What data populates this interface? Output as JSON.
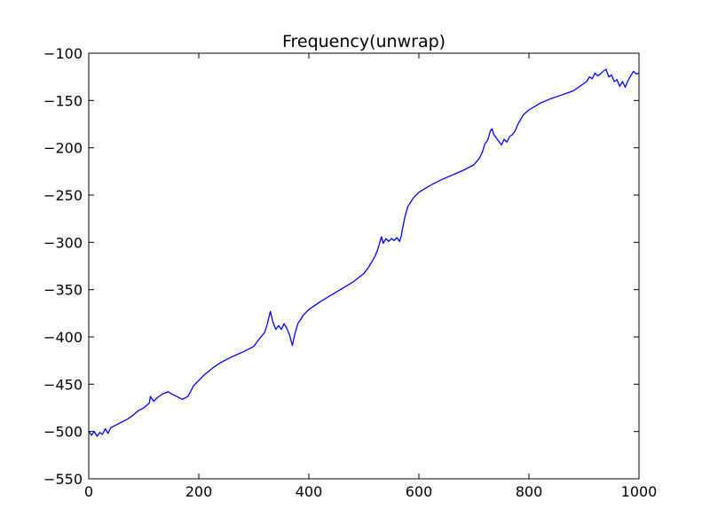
{
  "chart_data": {
    "type": "line",
    "title": "Frequency(unwrap)",
    "xlabel": "",
    "ylabel": "",
    "xlim": [
      0,
      1000
    ],
    "ylim": [
      -550,
      -100
    ],
    "x_ticks": [
      0,
      200,
      400,
      600,
      800,
      1000
    ],
    "y_ticks": [
      -100,
      -150,
      -200,
      -250,
      -300,
      -350,
      -400,
      -450,
      -500,
      -550
    ],
    "grid": false,
    "legend": "none",
    "series": [
      {
        "color": "#0000ff",
        "x": [
          0,
          5,
          10,
          15,
          20,
          25,
          30,
          35,
          40,
          50,
          60,
          70,
          80,
          90,
          100,
          110,
          112,
          118,
          125,
          135,
          145,
          150,
          160,
          170,
          180,
          185,
          190,
          200,
          210,
          225,
          240,
          260,
          280,
          300,
          310,
          320,
          325,
          330,
          335,
          340,
          345,
          350,
          355,
          360,
          365,
          370,
          375,
          380,
          390,
          400,
          420,
          440,
          460,
          480,
          500,
          510,
          520,
          525,
          530,
          532,
          535,
          540,
          545,
          550,
          555,
          560,
          565,
          568,
          570,
          575,
          580,
          590,
          600,
          620,
          640,
          660,
          680,
          700,
          710,
          715,
          720,
          725,
          730,
          733,
          736,
          740,
          745,
          750,
          755,
          760,
          765,
          770,
          775,
          780,
          790,
          800,
          820,
          840,
          860,
          880,
          900,
          905,
          910,
          915,
          920,
          925,
          930,
          935,
          940,
          945,
          950,
          955,
          960,
          965,
          970,
          975,
          980,
          985,
          990,
          995,
          1000
        ],
        "values": [
          -500,
          -504,
          -500,
          -505,
          -501,
          -503,
          -497,
          -502,
          -496,
          -493,
          -490,
          -487,
          -483,
          -478,
          -475,
          -470,
          -463,
          -468,
          -464,
          -460,
          -458,
          -460,
          -463,
          -466,
          -463,
          -458,
          -452,
          -446,
          -440,
          -433,
          -427,
          -421,
          -416,
          -410,
          -402,
          -395,
          -385,
          -373,
          -385,
          -392,
          -388,
          -392,
          -386,
          -391,
          -398,
          -409,
          -396,
          -386,
          -377,
          -371,
          -363,
          -356,
          -349,
          -342,
          -333,
          -325,
          -315,
          -308,
          -298,
          -294,
          -301,
          -296,
          -299,
          -296,
          -298,
          -295,
          -299,
          -293,
          -286,
          -272,
          -262,
          -253,
          -247,
          -240,
          -234,
          -229,
          -224,
          -218,
          -211,
          -205,
          -196,
          -192,
          -182,
          -180,
          -186,
          -189,
          -193,
          -197,
          -191,
          -194,
          -188,
          -186,
          -182,
          -175,
          -165,
          -160,
          -153,
          -148,
          -144,
          -140,
          -132,
          -130,
          -125,
          -127,
          -121,
          -124,
          -122,
          -119,
          -117,
          -125,
          -123,
          -130,
          -128,
          -135,
          -130,
          -136,
          -129,
          -124,
          -119,
          -122,
          -121
        ]
      }
    ]
  }
}
